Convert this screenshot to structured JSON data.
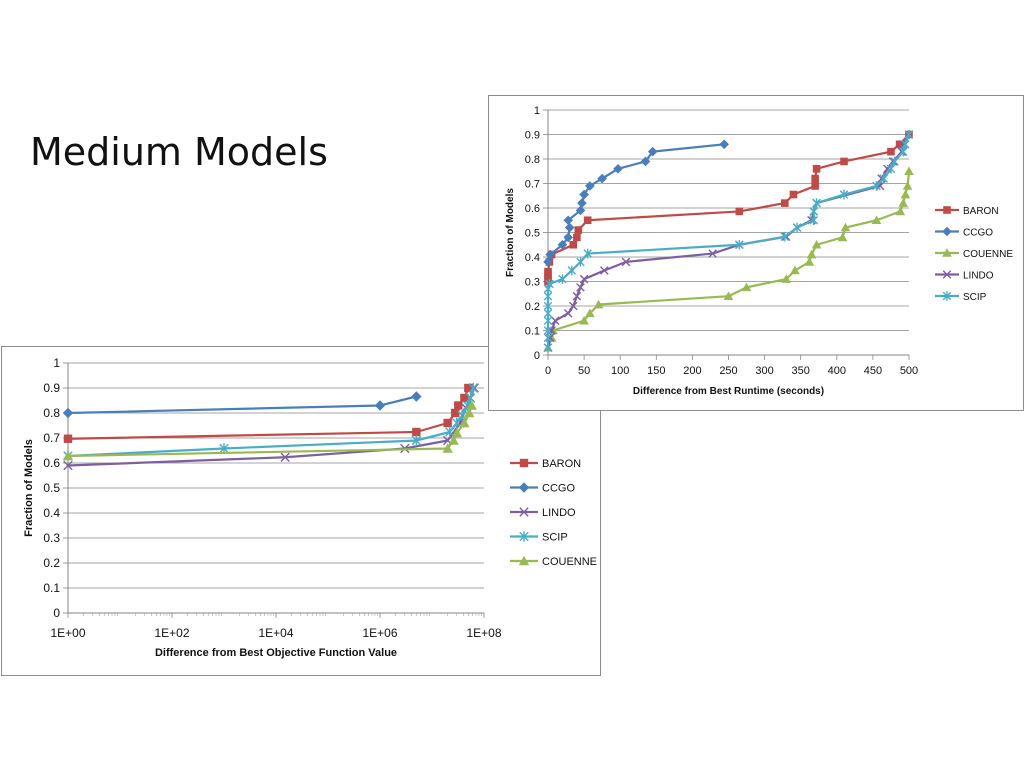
{
  "slide": {
    "title": "Medium Models"
  },
  "chart_data": [
    {
      "id": "objective",
      "type": "line",
      "xscale": "log",
      "xlabel": "Difference from Best Objective Function Value",
      "ylabel": "Fraction of Models",
      "xlim": [
        1,
        100000000
      ],
      "ylim": [
        0,
        1
      ],
      "xticks": [
        {
          "value": 1,
          "label": "1E+00"
        },
        {
          "value": 100,
          "label": "1E+02"
        },
        {
          "value": 10000,
          "label": "1E+04"
        },
        {
          "value": 1000000,
          "label": "1E+06"
        },
        {
          "value": 100000000,
          "label": "1E+08"
        }
      ],
      "yticks": [
        0,
        0.1,
        0.2,
        0.3,
        0.4,
        0.5,
        0.6,
        0.7,
        0.8,
        0.9,
        1
      ],
      "grid": "horizontal",
      "legend_position": "right",
      "series": [
        {
          "name": "BARON",
          "color": "#be4b48",
          "marker": "square",
          "points": [
            [
              1,
              0.697
            ],
            [
              5000000,
              0.724
            ],
            [
              20000000,
              0.76
            ],
            [
              28000000,
              0.8
            ],
            [
              32000000,
              0.83
            ],
            [
              42000000,
              0.86
            ],
            [
              50000000,
              0.9
            ]
          ]
        },
        {
          "name": "CCGO",
          "color": "#4a7ebb",
          "marker": "diamond",
          "points": [
            [
              1,
              0.8
            ],
            [
              1000000,
              0.83
            ],
            [
              5000000,
              0.866
            ]
          ]
        },
        {
          "name": "LINDO",
          "color": "#7d5fa0",
          "marker": "x",
          "points": [
            [
              1,
              0.59
            ],
            [
              15000,
              0.623
            ],
            [
              3000000,
              0.658
            ],
            [
              20000000,
              0.69
            ],
            [
              35000000,
              0.76
            ],
            [
              45000000,
              0.82
            ],
            [
              55000000,
              0.86
            ],
            [
              65000000,
              0.9
            ]
          ]
        },
        {
          "name": "SCIP",
          "color": "#4bacc6",
          "marker": "star",
          "points": [
            [
              1,
              0.628
            ],
            [
              1000,
              0.658
            ],
            [
              5000000,
              0.69
            ],
            [
              22000000,
              0.724
            ],
            [
              30000000,
              0.76
            ],
            [
              38000000,
              0.79
            ],
            [
              48000000,
              0.83
            ],
            [
              55000000,
              0.86
            ],
            [
              62000000,
              0.9
            ]
          ]
        },
        {
          "name": "COUENNE",
          "color": "#98b954",
          "marker": "triangle",
          "points": [
            [
              1,
              0.628
            ],
            [
              20000000,
              0.658
            ],
            [
              26000000,
              0.69
            ],
            [
              30000000,
              0.72
            ],
            [
              42000000,
              0.76
            ],
            [
              52000000,
              0.8
            ],
            [
              58000000,
              0.83
            ]
          ]
        }
      ]
    },
    {
      "id": "runtime",
      "type": "line",
      "xscale": "linear",
      "xlabel": "Difference from Best Runtime (seconds)",
      "ylabel": "Fraction of Models",
      "xlim": [
        0,
        500
      ],
      "ylim": [
        0,
        1
      ],
      "xticks": [
        0,
        50,
        100,
        150,
        200,
        250,
        300,
        350,
        400,
        450,
        500
      ],
      "yticks": [
        0,
        0.1,
        0.2,
        0.3,
        0.4,
        0.5,
        0.6,
        0.7,
        0.8,
        0.9,
        1
      ],
      "grid": "horizontal",
      "legend_position": "right",
      "series": [
        {
          "name": "BARON",
          "color": "#be4b48",
          "marker": "square",
          "points": [
            [
              0,
              0.3
            ],
            [
              0,
              0.31
            ],
            [
              0,
              0.33
            ],
            [
              0,
              0.34
            ],
            [
              2,
              0.38
            ],
            [
              5,
              0.41
            ],
            [
              35,
              0.45
            ],
            [
              40,
              0.48
            ],
            [
              42,
              0.51
            ],
            [
              55,
              0.55
            ],
            [
              265,
              0.586
            ],
            [
              328,
              0.62
            ],
            [
              340,
              0.655
            ],
            [
              370,
              0.69
            ],
            [
              370,
              0.72
            ],
            [
              372,
              0.76
            ],
            [
              410,
              0.79
            ],
            [
              475,
              0.83
            ],
            [
              487,
              0.86
            ],
            [
              500,
              0.9
            ]
          ]
        },
        {
          "name": "CCGO",
          "color": "#4a7ebb",
          "marker": "diamond",
          "points": [
            [
              0,
              0.38
            ],
            [
              3,
              0.41
            ],
            [
              20,
              0.45
            ],
            [
              28,
              0.48
            ],
            [
              30,
              0.52
            ],
            [
              28,
              0.55
            ],
            [
              45,
              0.59
            ],
            [
              47,
              0.62
            ],
            [
              50,
              0.655
            ],
            [
              58,
              0.69
            ],
            [
              75,
              0.72
            ],
            [
              97,
              0.76
            ],
            [
              135,
              0.79
            ],
            [
              145,
              0.83
            ],
            [
              244,
              0.86
            ]
          ]
        },
        {
          "name": "COUENNE",
          "color": "#98b954",
          "marker": "triangle",
          "points": [
            [
              0,
              0.03
            ],
            [
              5,
              0.07
            ],
            [
              7,
              0.1
            ],
            [
              50,
              0.14
            ],
            [
              58,
              0.17
            ],
            [
              70,
              0.206
            ],
            [
              250,
              0.24
            ],
            [
              275,
              0.276
            ],
            [
              330,
              0.31
            ],
            [
              342,
              0.345
            ],
            [
              362,
              0.38
            ],
            [
              365,
              0.41
            ],
            [
              372,
              0.45
            ],
            [
              408,
              0.48
            ],
            [
              412,
              0.52
            ],
            [
              455,
              0.55
            ],
            [
              488,
              0.586
            ],
            [
              492,
              0.62
            ],
            [
              495,
              0.655
            ],
            [
              498,
              0.69
            ],
            [
              500,
              0.75
            ]
          ]
        },
        {
          "name": "LINDO",
          "color": "#7d5fa0",
          "marker": "x",
          "points": [
            [
              0,
              0.03
            ],
            [
              3,
              0.07
            ],
            [
              5,
              0.1
            ],
            [
              10,
              0.14
            ],
            [
              28,
              0.17
            ],
            [
              35,
              0.2
            ],
            [
              40,
              0.24
            ],
            [
              45,
              0.276
            ],
            [
              50,
              0.31
            ],
            [
              78,
              0.345
            ],
            [
              108,
              0.38
            ],
            [
              228,
              0.414
            ],
            [
              265,
              0.45
            ],
            [
              330,
              0.483
            ],
            [
              345,
              0.52
            ],
            [
              365,
              0.55
            ],
            [
              368,
              0.586
            ],
            [
              372,
              0.62
            ],
            [
              460,
              0.69
            ],
            [
              462,
              0.72
            ],
            [
              470,
              0.76
            ],
            [
              478,
              0.79
            ],
            [
              490,
              0.83
            ],
            [
              492,
              0.86
            ],
            [
              500,
              0.9
            ]
          ]
        },
        {
          "name": "SCIP",
          "color": "#4bacc6",
          "marker": "star",
          "points": [
            [
              0,
              0.03
            ],
            [
              0,
              0.07
            ],
            [
              0,
              0.1
            ],
            [
              0,
              0.14
            ],
            [
              0,
              0.17
            ],
            [
              0,
              0.2
            ],
            [
              0,
              0.24
            ],
            [
              0,
              0.27
            ],
            [
              2,
              0.29
            ],
            [
              20,
              0.31
            ],
            [
              33,
              0.345
            ],
            [
              45,
              0.38
            ],
            [
              55,
              0.414
            ],
            [
              265,
              0.45
            ],
            [
              328,
              0.483
            ],
            [
              345,
              0.52
            ],
            [
              368,
              0.55
            ],
            [
              368,
              0.586
            ],
            [
              372,
              0.62
            ],
            [
              410,
              0.655
            ],
            [
              455,
              0.69
            ],
            [
              465,
              0.72
            ],
            [
              475,
              0.76
            ],
            [
              480,
              0.79
            ],
            [
              492,
              0.83
            ],
            [
              495,
              0.86
            ],
            [
              500,
              0.9
            ]
          ]
        }
      ]
    }
  ]
}
